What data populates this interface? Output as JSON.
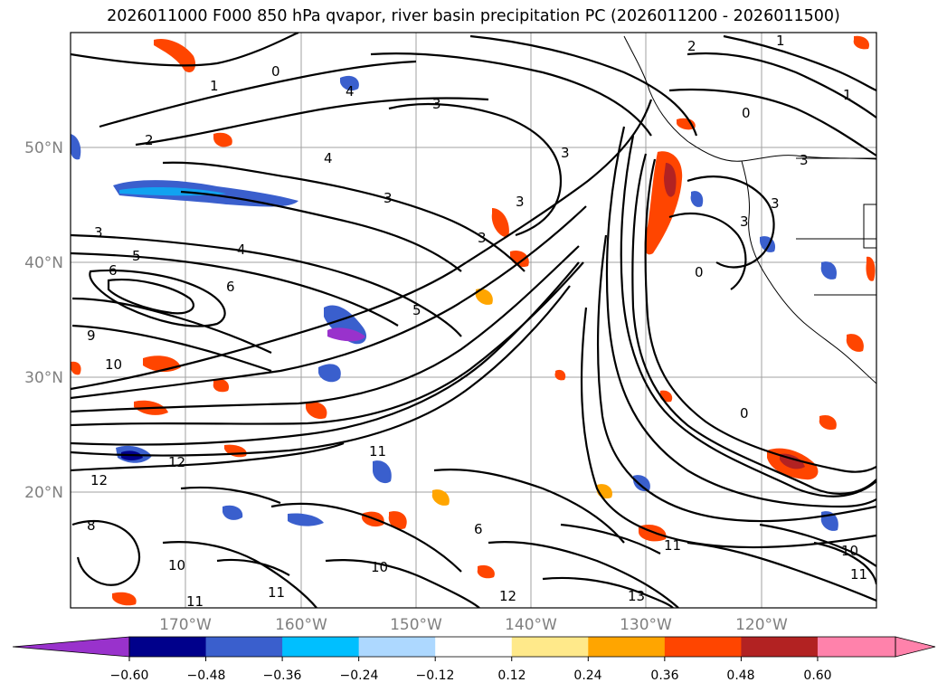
{
  "title": "2026011000 F000 850 hPa qvapor, river basin precipitation PC (2026011200 - 2026011500)",
  "map": {
    "lat_labels": [
      "50°N",
      "40°N",
      "30°N",
      "20°N"
    ],
    "lon_labels": [
      "170°W",
      "160°W",
      "150°W",
      "140°W",
      "130°W",
      "120°W"
    ],
    "gridlines": true,
    "contour_labels": [
      "1",
      "2",
      "3",
      "4",
      "5",
      "6",
      "8",
      "9",
      "10",
      "11",
      "12",
      "13",
      "0"
    ]
  },
  "colorbar": {
    "ticks": [
      "−0.60",
      "−0.48",
      "−0.36",
      "−0.24",
      "−0.12",
      "0.12",
      "0.24",
      "0.36",
      "0.48",
      "0.60"
    ],
    "colors": [
      "#9932CC",
      "#00008B",
      "#3A5FCD",
      "#00BFFF",
      "#ADD8FF",
      "#FFFFFF",
      "#FFE98A",
      "#FFA500",
      "#FF4500",
      "#B22222",
      "#FF82AB",
      "#FF82AB"
    ]
  }
}
